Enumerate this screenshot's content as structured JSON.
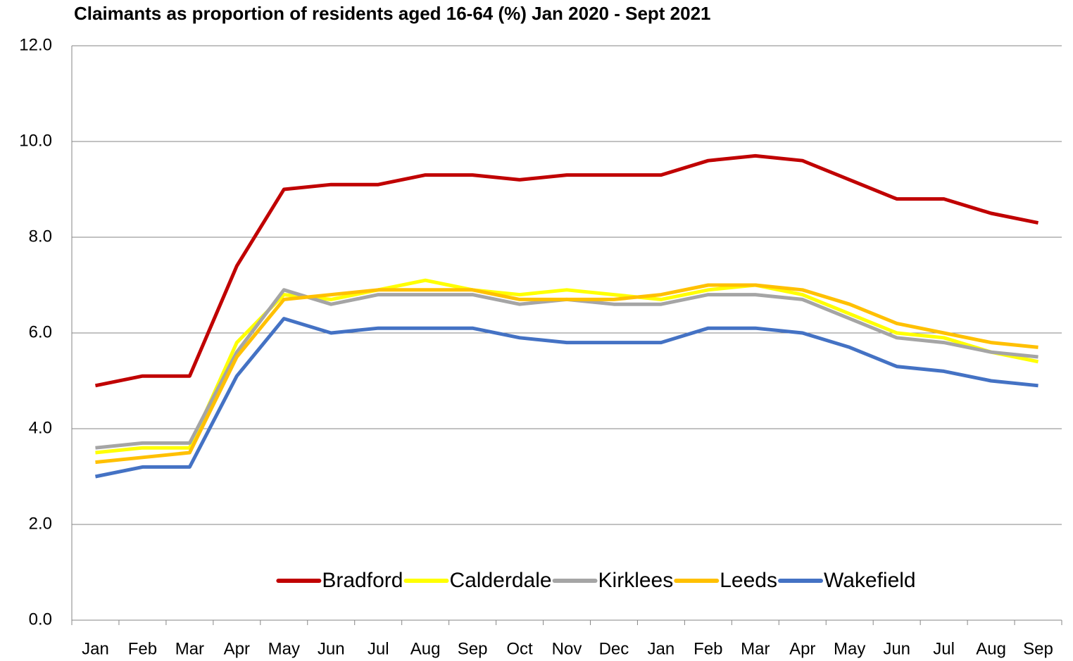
{
  "chart_data": {
    "type": "line",
    "title": "Claimants as proportion of residents aged 16-64 (%) Jan 2020 - Sept 2021",
    "categories": [
      "Jan",
      "Feb",
      "Mar",
      "Apr",
      "May",
      "Jun",
      "Jul",
      "Aug",
      "Sep",
      "Oct",
      "Nov",
      "Dec",
      "Jan",
      "Feb",
      "Mar",
      "Apr",
      "May",
      "Jun",
      "Jul",
      "Aug",
      "Sep"
    ],
    "series": [
      {
        "name": "Bradford",
        "color": "#c00000",
        "values": [
          4.9,
          5.1,
          5.1,
          7.4,
          9.0,
          9.1,
          9.1,
          9.3,
          9.3,
          9.2,
          9.3,
          9.3,
          9.3,
          9.6,
          9.7,
          9.6,
          9.2,
          8.8,
          8.8,
          8.5,
          8.3
        ]
      },
      {
        "name": "Calderdale",
        "color": "#ffff00",
        "values": [
          3.5,
          3.6,
          3.6,
          5.8,
          6.8,
          6.7,
          6.9,
          7.1,
          6.9,
          6.8,
          6.9,
          6.8,
          6.7,
          6.9,
          7.0,
          6.8,
          6.4,
          6.0,
          5.9,
          5.6,
          5.4
        ]
      },
      {
        "name": "Kirklees",
        "color": "#a5a5a5",
        "values": [
          3.6,
          3.7,
          3.7,
          5.6,
          6.9,
          6.6,
          6.8,
          6.8,
          6.8,
          6.6,
          6.7,
          6.6,
          6.6,
          6.8,
          6.8,
          6.7,
          6.3,
          5.9,
          5.8,
          5.6,
          5.5
        ]
      },
      {
        "name": "Leeds",
        "color": "#ffc000",
        "values": [
          3.3,
          3.4,
          3.5,
          5.5,
          6.7,
          6.8,
          6.9,
          6.9,
          6.9,
          6.7,
          6.7,
          6.7,
          6.8,
          7.0,
          7.0,
          6.9,
          6.6,
          6.2,
          6.0,
          5.8,
          5.7
        ]
      },
      {
        "name": "Wakefield",
        "color": "#4472c4",
        "values": [
          3.0,
          3.2,
          3.2,
          5.1,
          6.3,
          6.0,
          6.1,
          6.1,
          6.1,
          5.9,
          5.8,
          5.8,
          5.8,
          6.1,
          6.1,
          6.0,
          5.7,
          5.3,
          5.2,
          5.0,
          4.9
        ]
      }
    ],
    "ylim": [
      0,
      12
    ],
    "yticks": [
      {
        "value": 0,
        "label": "0.0"
      },
      {
        "value": 2,
        "label": "2.0"
      },
      {
        "value": 4,
        "label": "4.0"
      },
      {
        "value": 6,
        "label": "6.0"
      },
      {
        "value": 8,
        "label": "8.0"
      },
      {
        "value": 10,
        "label": "10.0"
      },
      {
        "value": 12,
        "label": "12.0"
      }
    ],
    "grid": true,
    "legend": "bottom"
  }
}
